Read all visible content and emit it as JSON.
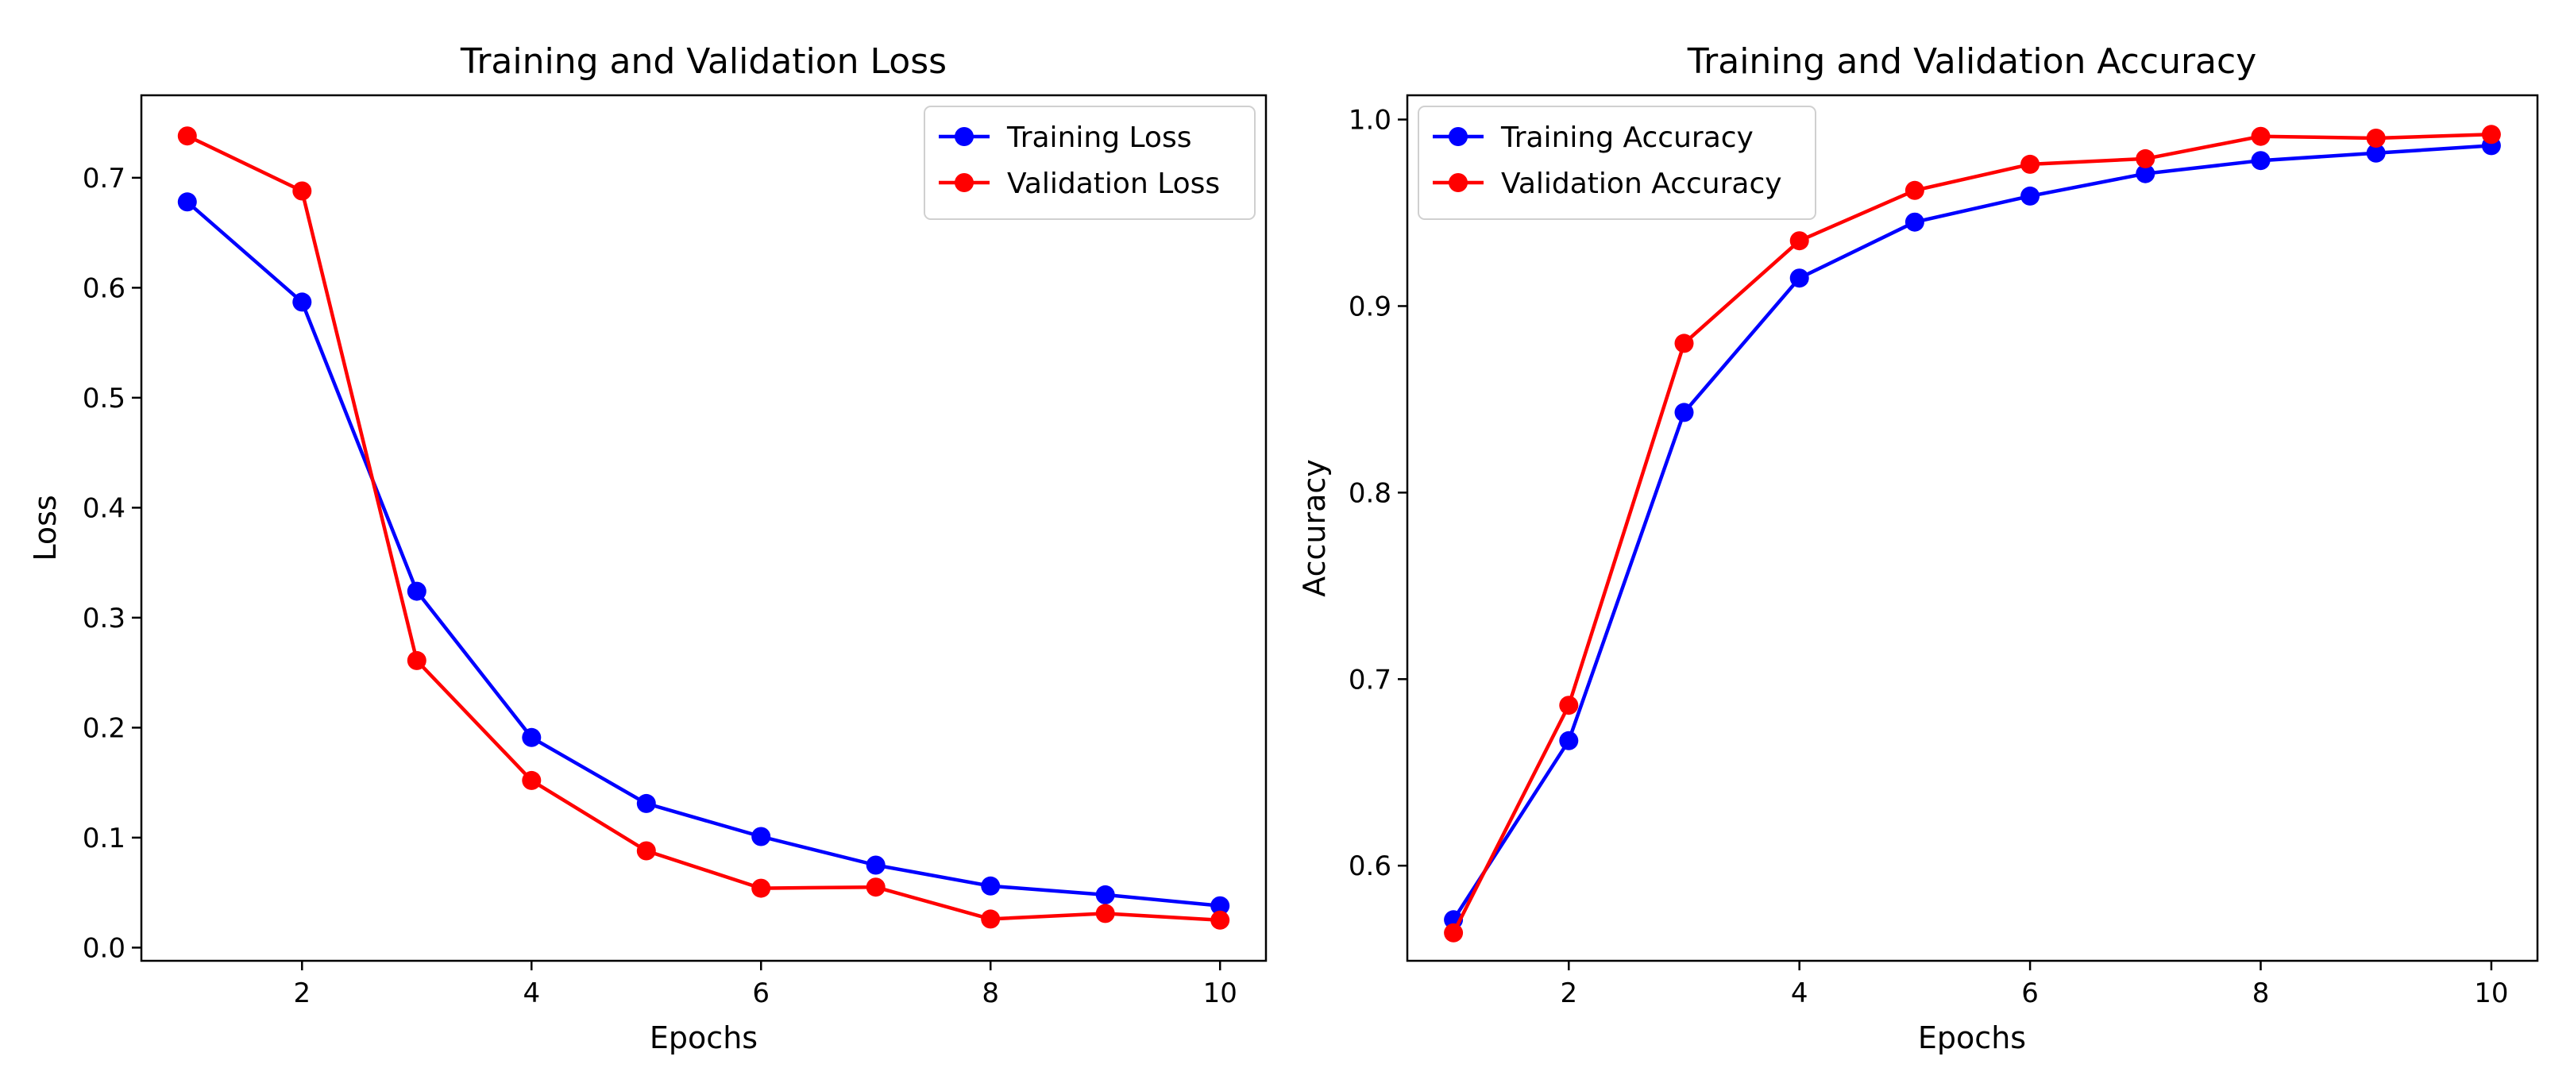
{
  "chart_data": [
    {
      "type": "line",
      "title": "Training and Validation Loss",
      "xlabel": "Epochs",
      "ylabel": "Loss",
      "xlim": [
        0.6,
        10.4
      ],
      "ylim": [
        -0.012,
        0.775
      ],
      "xticks": [
        2,
        4,
        6,
        8,
        10
      ],
      "yticks": [
        0.0,
        0.1,
        0.2,
        0.3,
        0.4,
        0.5,
        0.6,
        0.7
      ],
      "ytick_decimals": 1,
      "grid": false,
      "legend_position": "top-right",
      "x": [
        1,
        2,
        3,
        4,
        5,
        6,
        7,
        8,
        9,
        10
      ],
      "series": [
        {
          "name": "Training Loss",
          "color": "#0000ff",
          "values": [
            0.678,
            0.587,
            0.324,
            0.191,
            0.131,
            0.101,
            0.075,
            0.056,
            0.048,
            0.038
          ]
        },
        {
          "name": "Validation Loss",
          "color": "#ff0000",
          "values": [
            0.738,
            0.688,
            0.261,
            0.152,
            0.088,
            0.054,
            0.055,
            0.026,
            0.031,
            0.025
          ]
        }
      ]
    },
    {
      "type": "line",
      "title": "Training and Validation Accuracy",
      "xlabel": "Epochs",
      "ylabel": "Accuracy",
      "xlim": [
        0.6,
        10.4
      ],
      "ylim": [
        0.549,
        1.013
      ],
      "xticks": [
        2,
        4,
        6,
        8,
        10
      ],
      "yticks": [
        0.6,
        0.7,
        0.8,
        0.9,
        1.0
      ],
      "ytick_decimals": 1,
      "grid": false,
      "legend_position": "top-left",
      "x": [
        1,
        2,
        3,
        4,
        5,
        6,
        7,
        8,
        9,
        10
      ],
      "series": [
        {
          "name": "Training Accuracy",
          "color": "#0000ff",
          "values": [
            0.571,
            0.667,
            0.843,
            0.915,
            0.945,
            0.959,
            0.971,
            0.978,
            0.982,
            0.986
          ]
        },
        {
          "name": "Validation Accuracy",
          "color": "#ff0000",
          "values": [
            0.564,
            0.686,
            0.88,
            0.935,
            0.962,
            0.976,
            0.979,
            0.991,
            0.99,
            0.992
          ]
        }
      ]
    }
  ]
}
